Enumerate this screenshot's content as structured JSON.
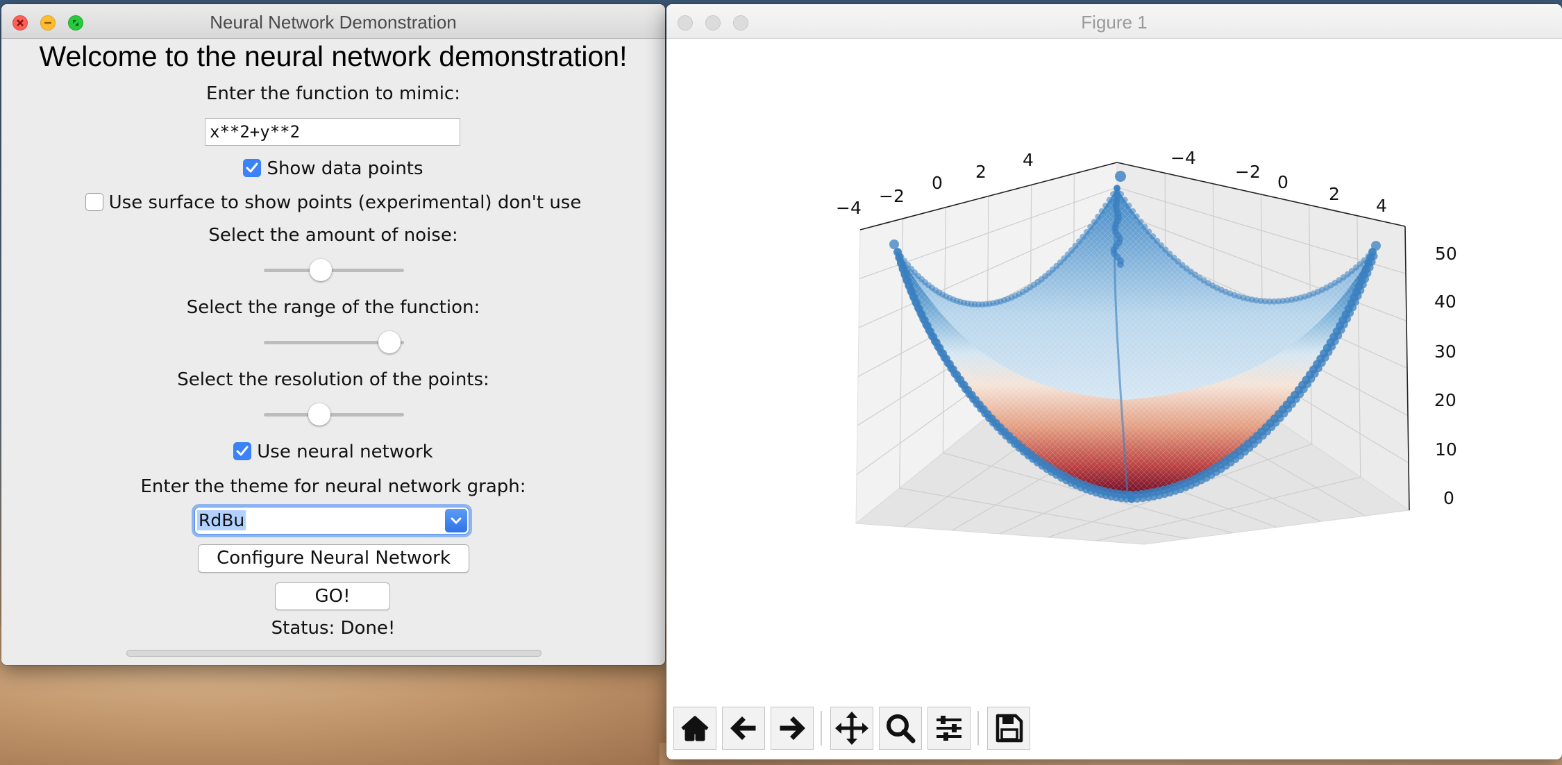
{
  "main_window": {
    "title": "Neural Network Demonstration",
    "heading": "Welcome to the neural network demonstration!",
    "function_label": "Enter the function to mimic:",
    "function_value": "x**2+y**2",
    "show_points_label": "Show data points",
    "show_points_checked": true,
    "use_surface_label": "Use surface to show points (experimental) don't use",
    "use_surface_checked": false,
    "noise_label": "Select the amount of noise:",
    "noise_value": 0.4,
    "range_label": "Select the range of the function:",
    "range_value": 0.9,
    "resolution_label": "Select the resolution of the points:",
    "resolution_value": 0.4,
    "use_nn_label": "Use neural network",
    "use_nn_checked": true,
    "theme_label": "Enter the theme for neural network graph:",
    "theme_value": "RdBu",
    "configure_button": "Configure Neural Network",
    "go_button": "GO!",
    "status_text": "Status: Done!",
    "progress": 0
  },
  "figure_window": {
    "title": "Figure 1",
    "toolbar_icons": [
      "home-icon",
      "back-arrow-icon",
      "forward-arrow-icon",
      "pan-icon",
      "zoom-icon",
      "configure-subplots-icon",
      "save-icon"
    ]
  },
  "chart_data": {
    "type": "surface3d",
    "function": "x**2+y**2",
    "x_ticks": [
      "−4",
      "−2",
      "0",
      "2",
      "4"
    ],
    "y_ticks": [
      "−4",
      "−2",
      "0",
      "2",
      "4"
    ],
    "z_ticks": [
      "0",
      "10",
      "20",
      "30",
      "40",
      "50"
    ],
    "xlim": [
      -5,
      5
    ],
    "ylim": [
      -5,
      5
    ],
    "zlim": [
      0,
      50
    ],
    "colormap": "RdBu",
    "points_color": "#3a7fc0",
    "grid": true
  },
  "colors": {
    "checkbox_on": "#3b82f6",
    "close": "#fe5f57",
    "minimize": "#febc2e",
    "zoom": "#28c840"
  }
}
